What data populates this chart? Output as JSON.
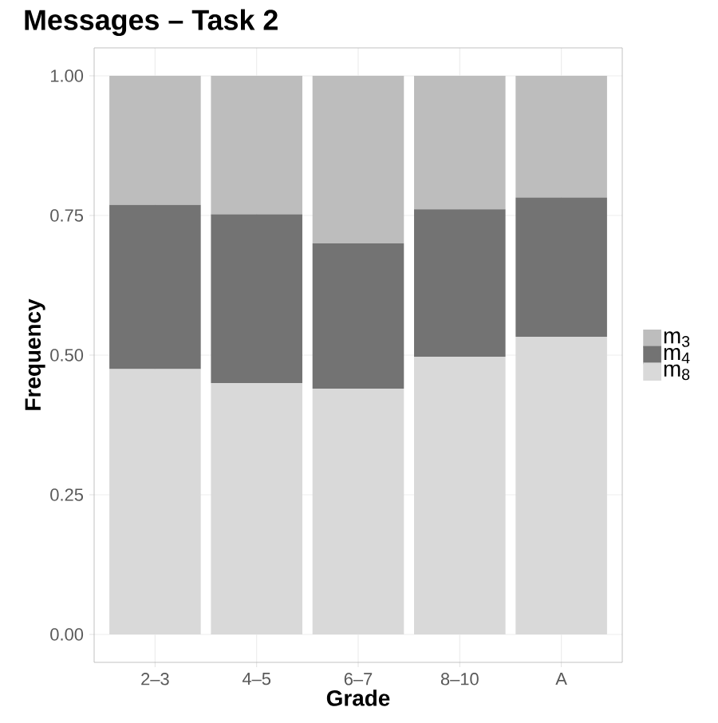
{
  "chart_data": {
    "type": "bar",
    "title": "Messages – Task 2",
    "xlabel": "Grade",
    "ylabel": "Frequency",
    "stacked": true,
    "categories": [
      "2–3",
      "4–5",
      "6–7",
      "8–10",
      "A"
    ],
    "series": [
      {
        "name": "m$_{8}$",
        "color": "#d9d9d9",
        "values": [
          0.475,
          0.45,
          0.44,
          0.497,
          0.533
        ]
      },
      {
        "name": "m$_{4}$",
        "color": "#737373",
        "values": [
          0.294,
          0.302,
          0.26,
          0.264,
          0.249
        ]
      },
      {
        "name": "m$_{3}$",
        "color": "#bdbdbd",
        "values": [
          0.231,
          0.248,
          0.3,
          0.239,
          0.218
        ]
      }
    ],
    "ylim": [
      -0.05,
      1.05
    ],
    "yticks": [
      {
        "value": 0,
        "label": "0.00"
      },
      {
        "value": 0.25,
        "label": "0.25"
      },
      {
        "value": 0.5,
        "label": "0.50"
      },
      {
        "value": 0.75,
        "label": "0.75"
      },
      {
        "value": 1,
        "label": "1.00"
      }
    ],
    "grid": true,
    "legend": "right"
  }
}
